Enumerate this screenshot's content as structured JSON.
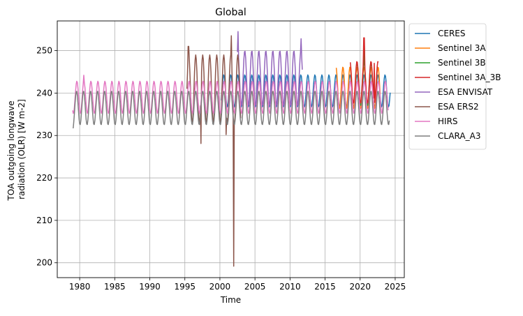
{
  "chart_data": {
    "type": "line",
    "title": "Global",
    "xlabel": "Time",
    "ylabel_lines": [
      "TOA outgoing longwave",
      "radiation (OLR) [W m-2]"
    ],
    "xlim": [
      1976.8,
      2026.3
    ],
    "ylim": [
      196.5,
      257.0
    ],
    "xticks": [
      1980,
      1985,
      1990,
      1995,
      2000,
      2005,
      2010,
      2015,
      2020,
      2025
    ],
    "yticks": [
      200,
      210,
      220,
      230,
      240,
      250
    ],
    "grid": true,
    "legend_position": "outside-right",
    "series": [
      {
        "name": "CERES",
        "color": "#1f77b4",
        "start": 2000.2,
        "end": 2024.3,
        "mean": 240.5,
        "amplitude": 3.8,
        "phase_peak": 0.55,
        "events": []
      },
      {
        "name": "Sentinel 3A",
        "color": "#ff7f0e",
        "start": 2016.6,
        "end": 2022.9,
        "mean": 241.2,
        "amplitude": 5.0,
        "phase_peak": 0.55,
        "events": []
      },
      {
        "name": "Sentinel 3B",
        "color": "#2ca02c",
        "start": 2019.5,
        "end": 2021.5,
        "mean": 242.0,
        "amplitude": 5.0,
        "phase_peak": 0.55,
        "events": [
          {
            "t": 2020.55,
            "v": 252.5
          }
        ]
      },
      {
        "name": "Sentinel 3A_3B",
        "color": "#d62728",
        "start": 2018.6,
        "end": 2022.6,
        "mean": 242.5,
        "amplitude": 5.0,
        "phase_peak": 0.55,
        "events": [
          {
            "t": 2020.55,
            "v": 253.0
          },
          {
            "t": 2022.0,
            "v": 247.0
          }
        ]
      },
      {
        "name": "ESA ENVISAT",
        "color": "#9467bd",
        "start": 2002.5,
        "end": 2011.8,
        "mean": 243.5,
        "amplitude": 6.5,
        "phase_peak": 0.55,
        "events": [
          {
            "t": 2002.6,
            "v": 254.5
          },
          {
            "t": 2011.6,
            "v": 252.8
          }
        ]
      },
      {
        "name": "ESA ERS2",
        "color": "#8c564b",
        "start": 1995.3,
        "end": 2003.0,
        "mean": 241.0,
        "amplitude": 8.0,
        "phase_peak": 0.55,
        "events": [
          {
            "t": 1995.5,
            "v": 251.0
          },
          {
            "t": 1997.3,
            "v": 228.1
          },
          {
            "t": 2000.9,
            "v": 230.2
          },
          {
            "t": 2001.95,
            "v": 199.2
          },
          {
            "t": 2001.6,
            "v": 253.5
          }
        ]
      },
      {
        "name": "HIRS",
        "color": "#e377c2",
        "start": 1979.0,
        "end": 2024.0,
        "mean": 239.0,
        "amplitude": 3.8,
        "phase_peak": 0.6,
        "events": [
          {
            "t": 1980.6,
            "v": 244.2
          }
        ]
      },
      {
        "name": "CLARA_A3",
        "color": "#7f7f7f",
        "start": 1979.0,
        "end": 2024.2,
        "mean": 236.5,
        "amplitude": 4.0,
        "phase_peak": 0.55,
        "events": [
          {
            "t": 1979.05,
            "v": 231.8
          }
        ]
      }
    ]
  }
}
